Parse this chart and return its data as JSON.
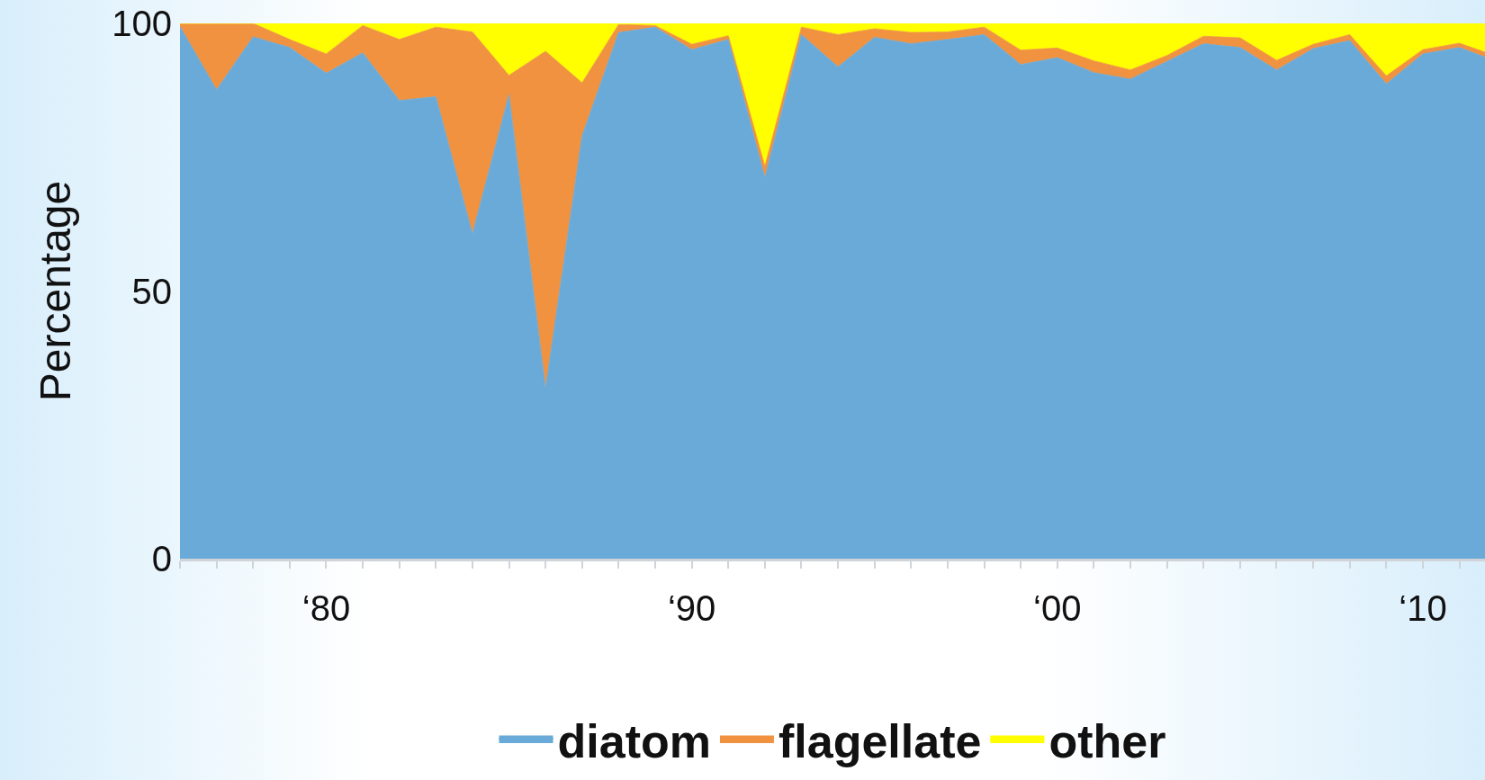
{
  "chart_data": {
    "type": "area",
    "stacked": true,
    "ylabel": "Percentage",
    "ylim": [
      0,
      100
    ],
    "yticks": [
      0,
      50,
      100
    ],
    "categories": [
      null,
      null,
      null,
      null,
      "‘80",
      null,
      null,
      null,
      null,
      null,
      null,
      null,
      null,
      null,
      "‘90",
      null,
      null,
      null,
      null,
      null,
      null,
      null,
      null,
      null,
      "‘00",
      null,
      null,
      null,
      null,
      null,
      null,
      null,
      null,
      null,
      "‘10",
      null,
      null
    ],
    "legend": "bottom",
    "series": [
      {
        "name": "diatom",
        "color": "#6aaad9",
        "values": [
          99.4,
          87.6,
          97.5,
          95.5,
          90.7,
          94.5,
          85.6,
          86.3,
          60.7,
          86.7,
          31.8,
          79.0,
          98.3,
          99.3,
          95.1,
          97.0,
          71.2,
          97.9,
          91.9,
          97.4,
          96.2,
          97.0,
          97.9,
          92.3,
          93.6,
          90.8,
          89.6,
          92.9,
          96.2,
          95.5,
          91.3,
          95.3,
          96.8,
          88.7,
          94.3,
          95.5,
          92.9
        ]
      },
      {
        "name": "flagellate",
        "color": "#f0923f",
        "values": [
          0.6,
          12.4,
          2.5,
          1.5,
          3.6,
          5.1,
          11.4,
          13.0,
          37.7,
          3.6,
          63.0,
          9.9,
          1.5,
          0.3,
          1.0,
          0.7,
          2.1,
          1.4,
          6.0,
          1.6,
          2.1,
          1.4,
          1.4,
          2.7,
          1.8,
          2.2,
          1.7,
          1.1,
          1.4,
          1.8,
          1.8,
          0.8,
          1.1,
          1.5,
          0.8,
          0.8,
          1.0
        ]
      },
      {
        "name": "other",
        "color": "#ffff00",
        "values": [
          0,
          0,
          0,
          3.0,
          5.7,
          0.4,
          3.0,
          0.7,
          1.6,
          9.7,
          5.2,
          11.1,
          0.2,
          0.4,
          3.9,
          2.3,
          26.7,
          0.7,
          2.1,
          1.0,
          1.7,
          1.6,
          0.7,
          5.0,
          4.6,
          7.0,
          8.7,
          6.0,
          2.4,
          2.7,
          6.9,
          3.9,
          2.1,
          9.8,
          4.9,
          3.7,
          6.1
        ]
      }
    ]
  }
}
